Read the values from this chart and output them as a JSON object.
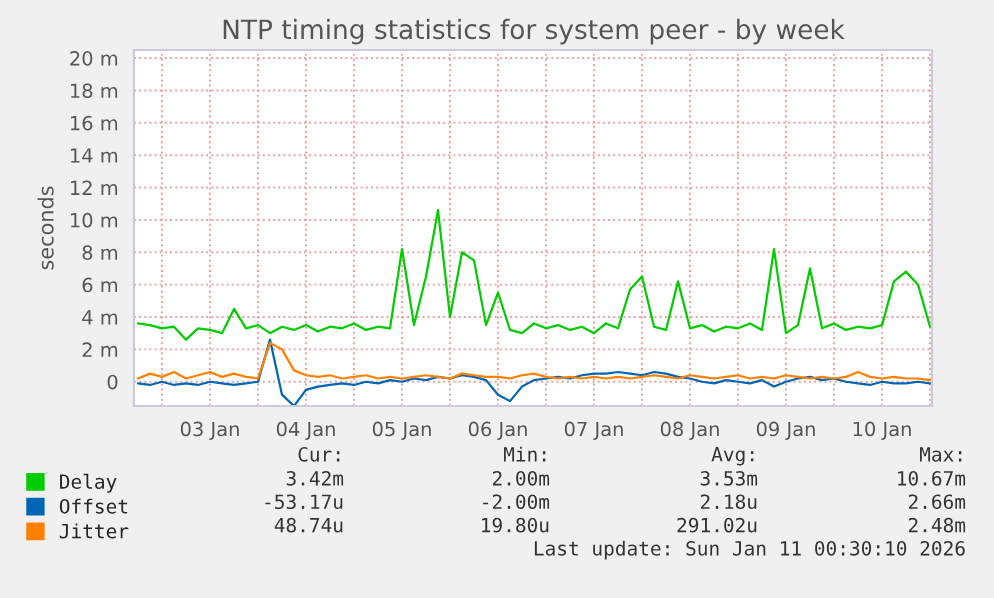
{
  "chart_data": {
    "type": "line",
    "title": "NTP timing statistics for system peer - by week",
    "ylabel": "seconds",
    "x": [
      "2026-01-02T18:00",
      "2026-01-02T21:00",
      "2026-01-03T00:00",
      "2026-01-03T03:00",
      "2026-01-03T06:00",
      "2026-01-03T09:00",
      "2026-01-03T12:00",
      "2026-01-03T15:00",
      "2026-01-03T18:00",
      "2026-01-03T21:00",
      "2026-01-04T00:00",
      "2026-01-04T03:00",
      "2026-01-04T06:00",
      "2026-01-04T09:00",
      "2026-01-04T12:00",
      "2026-01-04T15:00",
      "2026-01-04T18:00",
      "2026-01-04T21:00",
      "2026-01-05T00:00",
      "2026-01-05T03:00",
      "2026-01-05T06:00",
      "2026-01-05T09:00",
      "2026-01-05T12:00",
      "2026-01-05T15:00",
      "2026-01-05T18:00",
      "2026-01-05T21:00",
      "2026-01-06T00:00",
      "2026-01-06T03:00",
      "2026-01-06T06:00",
      "2026-01-06T09:00",
      "2026-01-06T12:00",
      "2026-01-06T15:00",
      "2026-01-06T18:00",
      "2026-01-06T21:00",
      "2026-01-07T00:00",
      "2026-01-07T03:00",
      "2026-01-07T06:00",
      "2026-01-07T09:00",
      "2026-01-07T12:00",
      "2026-01-07T15:00",
      "2026-01-07T18:00",
      "2026-01-07T21:00",
      "2026-01-08T00:00",
      "2026-01-08T03:00",
      "2026-01-08T06:00",
      "2026-01-08T09:00",
      "2026-01-08T12:00",
      "2026-01-08T15:00",
      "2026-01-08T18:00",
      "2026-01-08T21:00",
      "2026-01-09T00:00",
      "2026-01-09T03:00",
      "2026-01-09T06:00",
      "2026-01-09T09:00",
      "2026-01-09T12:00",
      "2026-01-09T15:00",
      "2026-01-09T18:00",
      "2026-01-09T21:00",
      "2026-01-10T00:00",
      "2026-01-10T03:00",
      "2026-01-10T06:00",
      "2026-01-10T09:00",
      "2026-01-10T12:00",
      "2026-01-10T15:00",
      "2026-01-10T18:00",
      "2026-01-10T21:00",
      "2026-01-11T00:00"
    ],
    "series": [
      {
        "name": "Delay",
        "color": "#00cc00",
        "values": [
          3.6,
          3.5,
          3.3,
          3.4,
          2.6,
          3.3,
          3.2,
          3.0,
          4.5,
          3.3,
          3.5,
          3.0,
          3.4,
          3.2,
          3.5,
          3.1,
          3.4,
          3.3,
          3.6,
          3.2,
          3.4,
          3.3,
          8.2,
          3.5,
          6.5,
          10.6,
          4.0,
          8.0,
          7.5,
          3.5,
          5.5,
          3.2,
          3.0,
          3.6,
          3.3,
          3.5,
          3.2,
          3.4,
          3.0,
          3.6,
          3.3,
          5.7,
          6.5,
          3.4,
          3.2,
          6.2,
          3.3,
          3.5,
          3.1,
          3.4,
          3.3,
          3.6,
          3.2,
          8.2,
          3.0,
          3.5,
          7.0,
          3.3,
          3.6,
          3.2,
          3.4,
          3.3,
          3.5,
          6.2,
          6.8,
          6.0,
          3.4
        ]
      },
      {
        "name": "Offset",
        "color": "#0066b3",
        "values": [
          -0.1,
          -0.2,
          0.0,
          -0.2,
          -0.1,
          -0.2,
          0.0,
          -0.1,
          -0.2,
          -0.1,
          0.0,
          2.6,
          -0.8,
          -1.5,
          -0.5,
          -0.3,
          -0.2,
          -0.1,
          -0.2,
          0.0,
          -0.1,
          0.1,
          0.0,
          0.2,
          0.1,
          0.3,
          0.2,
          0.4,
          0.3,
          0.1,
          -0.8,
          -1.2,
          -0.3,
          0.1,
          0.2,
          0.3,
          0.2,
          0.4,
          0.5,
          0.5,
          0.6,
          0.5,
          0.4,
          0.6,
          0.5,
          0.3,
          0.2,
          0.0,
          -0.1,
          0.1,
          0.0,
          -0.1,
          0.1,
          -0.3,
          0.0,
          0.2,
          0.3,
          0.1,
          0.2,
          0.0,
          -0.1,
          -0.2,
          0.0,
          -0.1,
          -0.1,
          0.0,
          -0.1
        ]
      },
      {
        "name": "Jitter",
        "color": "#ff8000",
        "values": [
          0.2,
          0.5,
          0.3,
          0.6,
          0.2,
          0.4,
          0.6,
          0.3,
          0.5,
          0.3,
          0.2,
          2.4,
          2.0,
          0.7,
          0.4,
          0.3,
          0.4,
          0.2,
          0.3,
          0.4,
          0.2,
          0.3,
          0.2,
          0.3,
          0.4,
          0.3,
          0.2,
          0.5,
          0.4,
          0.3,
          0.3,
          0.2,
          0.4,
          0.5,
          0.3,
          0.2,
          0.3,
          0.2,
          0.3,
          0.2,
          0.3,
          0.2,
          0.3,
          0.4,
          0.3,
          0.2,
          0.4,
          0.3,
          0.2,
          0.3,
          0.4,
          0.2,
          0.3,
          0.2,
          0.4,
          0.3,
          0.2,
          0.3,
          0.2,
          0.3,
          0.6,
          0.3,
          0.2,
          0.3,
          0.2,
          0.2,
          0.1
        ]
      }
    ],
    "xlim": [
      "2026-01-02T17:00",
      "2026-01-11T00:30"
    ],
    "xticks": [
      {
        "value": "2026-01-03T00:00",
        "label": null
      },
      {
        "value": "2026-01-03T12:00",
        "label": "03 Jan"
      },
      {
        "value": "2026-01-04T00:00",
        "label": null
      },
      {
        "value": "2026-01-04T12:00",
        "label": "04 Jan"
      },
      {
        "value": "2026-01-05T00:00",
        "label": null
      },
      {
        "value": "2026-01-05T12:00",
        "label": "05 Jan"
      },
      {
        "value": "2026-01-06T00:00",
        "label": null
      },
      {
        "value": "2026-01-06T12:00",
        "label": "06 Jan"
      },
      {
        "value": "2026-01-07T00:00",
        "label": null
      },
      {
        "value": "2026-01-07T12:00",
        "label": "07 Jan"
      },
      {
        "value": "2026-01-08T00:00",
        "label": null
      },
      {
        "value": "2026-01-08T12:00",
        "label": "08 Jan"
      },
      {
        "value": "2026-01-09T00:00",
        "label": null
      },
      {
        "value": "2026-01-09T12:00",
        "label": "09 Jan"
      },
      {
        "value": "2026-01-10T00:00",
        "label": null
      },
      {
        "value": "2026-01-10T12:00",
        "label": "10 Jan"
      },
      {
        "value": "2026-01-11T00:00",
        "label": null
      }
    ],
    "ylim": [
      -1.5,
      20.5
    ],
    "yticks": [
      {
        "value": 0,
        "label": "0"
      },
      {
        "value": 2,
        "label": "2 m"
      },
      {
        "value": 4,
        "label": "4 m"
      },
      {
        "value": 6,
        "label": "6 m"
      },
      {
        "value": 8,
        "label": "8 m"
      },
      {
        "value": 10,
        "label": "10 m"
      },
      {
        "value": 12,
        "label": "12 m"
      },
      {
        "value": 14,
        "label": "14 m"
      },
      {
        "value": 16,
        "label": "16 m"
      },
      {
        "value": 18,
        "label": "18 m"
      },
      {
        "value": 20,
        "label": "20 m"
      }
    ],
    "grid": true,
    "legend": "bottom left",
    "marker": "none",
    "line_style": "solid",
    "annotations": [
      "Cur:",
      "Min:",
      "Avg:",
      "Max:",
      "3.42m",
      "2.00m",
      "3.53m",
      "10.67m",
      "-53.17u",
      "-2.00m",
      "2.18u",
      "2.66m",
      "48.74u",
      "19.80u",
      "291.02u",
      "2.48m",
      "Last update: Sun Jan 11 00:30:10 2026"
    ]
  }
}
